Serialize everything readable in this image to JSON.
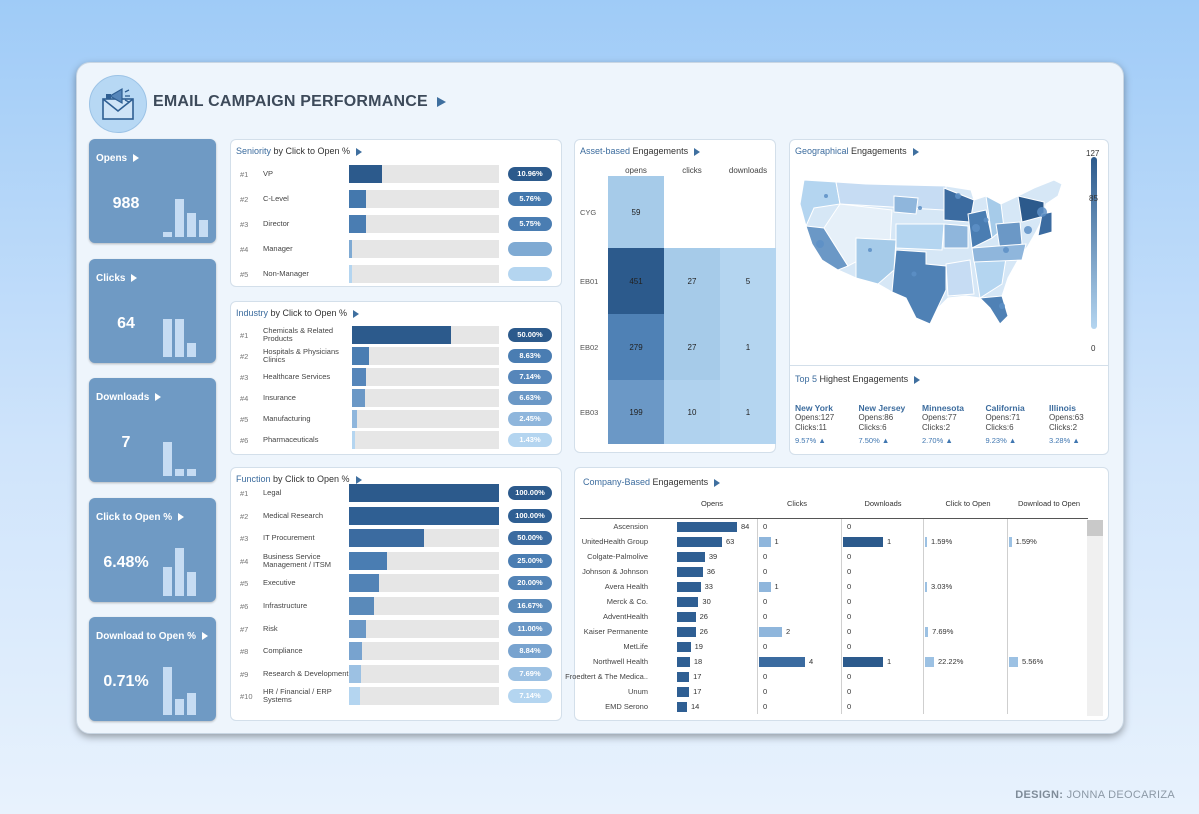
{
  "header": {
    "title": "EMAIL CAMPAIGN PERFORMANCE"
  },
  "kpis": [
    {
      "label": "Opens",
      "value": "988",
      "bars": [
        0.1,
        0.8,
        0.5,
        0.35
      ]
    },
    {
      "label": "Clicks",
      "value": "64",
      "bars": [
        0.8,
        0.8,
        0.3
      ]
    },
    {
      "label": "Downloads",
      "value": "7",
      "bars": [
        0.7,
        0.14,
        0.14
      ]
    },
    {
      "label": "Click to Open %",
      "value": "6.48%",
      "bars": [
        0.6,
        1.0,
        0.5
      ]
    },
    {
      "label": "Download to Open %",
      "value": "0.71%",
      "bars": [
        1.0,
        0.33,
        0.45
      ]
    }
  ],
  "seniority": {
    "title_hl": "Seniority",
    "title_rest": " by Click to Open %",
    "rows": [
      {
        "rank": "#1",
        "label": "VP",
        "pct": "10.96%",
        "value": 10.96,
        "color": "#2c5a8c"
      },
      {
        "rank": "#2",
        "label": "C-Level",
        "pct": "5.76%",
        "value": 5.76,
        "color": "#4478ad"
      },
      {
        "rank": "#3",
        "label": "Director",
        "pct": "5.75%",
        "value": 5.75,
        "color": "#4a7db2"
      },
      {
        "rank": "#4",
        "label": "Manager",
        "pct": "",
        "value": 0,
        "color": "#7faad3"
      },
      {
        "rank": "#5",
        "label": "Non-Manager",
        "pct": "",
        "value": 0,
        "color": "#b4d5f0"
      }
    ]
  },
  "industry": {
    "title_hl": "Industry",
    "title_rest": " by Click to Open %",
    "rows": [
      {
        "rank": "#1",
        "label": "Chemicals & Related Products",
        "pct": "50.00%",
        "value": 50,
        "color": "#2c5a8c"
      },
      {
        "rank": "#2",
        "label": "Hospitals & Physicians Clinics",
        "pct": "8.63%",
        "value": 8.63,
        "color": "#4a7db2"
      },
      {
        "rank": "#3",
        "label": "Healthcare Services",
        "pct": "7.14%",
        "value": 7.14,
        "color": "#5686ba"
      },
      {
        "rank": "#4",
        "label": "Insurance",
        "pct": "6.63%",
        "value": 6.63,
        "color": "#6b98c6"
      },
      {
        "rank": "#5",
        "label": "Manufacturing",
        "pct": "2.45%",
        "value": 2.45,
        "color": "#8fb6dc"
      },
      {
        "rank": "#6",
        "label": "Pharmaceuticals",
        "pct": "1.43%",
        "value": 1.43,
        "color": "#b4d5f0"
      }
    ]
  },
  "function": {
    "title_hl": "Function",
    "title_rest": " by Click to Open %",
    "rows": [
      {
        "rank": "#1",
        "label": "Legal",
        "pct": "100.00%",
        "value": 100,
        "color": "#2c5a8c"
      },
      {
        "rank": "#2",
        "label": "Medical Research",
        "pct": "100.00%",
        "value": 100,
        "color": "#2f5f93"
      },
      {
        "rank": "#3",
        "label": "IT Procurement",
        "pct": "50.00%",
        "value": 50,
        "color": "#3b6ba0"
      },
      {
        "rank": "#4",
        "label": "Business Service Management / ITSM",
        "pct": "25.00%",
        "value": 25,
        "color": "#4a7db2"
      },
      {
        "rank": "#5",
        "label": "Executive",
        "pct": "20.00%",
        "value": 20,
        "color": "#5283b6"
      },
      {
        "rank": "#6",
        "label": "Infrastructure",
        "pct": "16.67%",
        "value": 16.67,
        "color": "#5a8aba"
      },
      {
        "rank": "#7",
        "label": "Risk",
        "pct": "11.00%",
        "value": 11,
        "color": "#6b98c6"
      },
      {
        "rank": "#8",
        "label": "Compliance",
        "pct": "8.84%",
        "value": 8.84,
        "color": "#78a3cf"
      },
      {
        "rank": "#9",
        "label": "Research & Development",
        "pct": "7.69%",
        "value": 7.69,
        "color": "#9cc1e3"
      },
      {
        "rank": "#10",
        "label": "HR / Financial / ERP Systems",
        "pct": "7.14%",
        "value": 7.14,
        "color": "#b4d5f0"
      }
    ]
  },
  "asset": {
    "title_hl": "Asset-based",
    "title_rest": " Engagements",
    "columns": [
      "opens",
      "clicks",
      "downloads"
    ],
    "rows": [
      {
        "name": "CYG",
        "values": [
          "59",
          "",
          ""
        ],
        "colors": [
          "#a6cbe9",
          "",
          ""
        ]
      },
      {
        "name": "EB01",
        "values": [
          "451",
          "27",
          "5"
        ],
        "colors": [
          "#2c5a8c",
          "#a6cbe9",
          "#b4d5f0"
        ]
      },
      {
        "name": "EB02",
        "values": [
          "279",
          "27",
          "1"
        ],
        "colors": [
          "#4f81b5",
          "#a6cbe9",
          "#b4d5f0"
        ]
      },
      {
        "name": "EB03",
        "values": [
          "199",
          "10",
          "1"
        ],
        "colors": [
          "#6b98c6",
          "#b0d2ee",
          "#b4d5f0"
        ]
      }
    ]
  },
  "geo": {
    "title_hl": "Geographical",
    "title_rest": " Engagements",
    "legend_max": "127",
    "legend_mid": "85",
    "legend_min": "0"
  },
  "top5": {
    "title_hl": "Top 5",
    "title_rest": " Highest Engagements",
    "items": [
      {
        "state": "New York",
        "opens": "127",
        "clicks": "11",
        "pct": "9.57%"
      },
      {
        "state": "New Jersey",
        "opens": "86",
        "clicks": "6",
        "pct": "7.50%"
      },
      {
        "state": "Minnesota",
        "opens": "77",
        "clicks": "2",
        "pct": "2.70%"
      },
      {
        "state": "California",
        "opens": "71",
        "clicks": "6",
        "pct": "9.23%"
      },
      {
        "state": "Illinois",
        "opens": "63",
        "clicks": "2",
        "pct": "3.28%"
      }
    ],
    "opens_label": "Opens:",
    "clicks_label": "Clicks:"
  },
  "company": {
    "title_hl": "Company-Based",
    "title_rest": " Engagements",
    "headers": [
      "Opens",
      "Clicks",
      "Downloads",
      "Click to Open",
      "Download to Open"
    ],
    "rows": [
      {
        "name": "Ascension",
        "opens": 84,
        "clicks": 0,
        "downloads": 0,
        "cto": "",
        "dto": ""
      },
      {
        "name": "UnitedHealth Group",
        "opens": 63,
        "clicks": 1,
        "downloads": 1,
        "cto": "1.59%",
        "dto": "1.59%"
      },
      {
        "name": "Colgate-Palmolive",
        "opens": 39,
        "clicks": 0,
        "downloads": 0,
        "cto": "",
        "dto": ""
      },
      {
        "name": "Johnson & Johnson",
        "opens": 36,
        "clicks": 0,
        "downloads": 0,
        "cto": "",
        "dto": ""
      },
      {
        "name": "Avera Health",
        "opens": 33,
        "clicks": 1,
        "downloads": 0,
        "cto": "3.03%",
        "dto": ""
      },
      {
        "name": "Merck & Co.",
        "opens": 30,
        "clicks": 0,
        "downloads": 0,
        "cto": "",
        "dto": ""
      },
      {
        "name": "AdventHealth",
        "opens": 26,
        "clicks": 0,
        "downloads": 0,
        "cto": "",
        "dto": ""
      },
      {
        "name": "Kaiser Permanente",
        "opens": 26,
        "clicks": 2,
        "downloads": 0,
        "cto": "7.69%",
        "dto": ""
      },
      {
        "name": "MetLife",
        "opens": 19,
        "clicks": 0,
        "downloads": 0,
        "cto": "",
        "dto": ""
      },
      {
        "name": "Northwell Health",
        "opens": 18,
        "clicks": 4,
        "downloads": 1,
        "cto": "22.22%",
        "dto": "5.56%"
      },
      {
        "name": "Froedtert & The Medica..",
        "opens": 17,
        "clicks": 0,
        "downloads": 0,
        "cto": "",
        "dto": ""
      },
      {
        "name": "Unum",
        "opens": 17,
        "clicks": 0,
        "downloads": 0,
        "cto": "",
        "dto": ""
      },
      {
        "name": "EMD Serono",
        "opens": 14,
        "clicks": 0,
        "downloads": 0,
        "cto": "",
        "dto": ""
      }
    ]
  },
  "credit": {
    "label": "DESIGN:",
    "name": " JONNA DEOCARIZA"
  }
}
